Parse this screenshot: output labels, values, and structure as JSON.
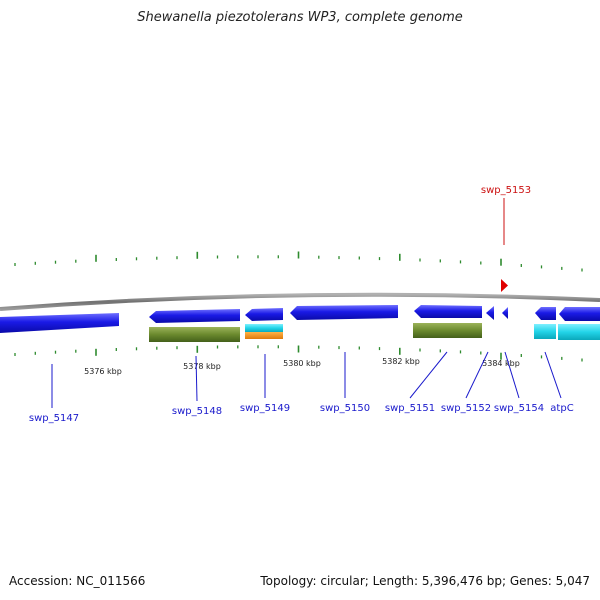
{
  "title": "Shewanella piezotolerans WP3, complete genome",
  "footer": {
    "accession": "Accession: NC_011566",
    "summary": "Topology: circular; Length: 5,396,476 bp; Genes: 5,047"
  },
  "colors": {
    "backbone": "#8c8c8c",
    "gene_blue": "#1a1ae0",
    "tick": "#2e8b2e",
    "highlight": "#cc1111",
    "green_feature": "#6b8a2e",
    "cyan_feature": "#22ccdd",
    "orange_feature": "#ee8811"
  },
  "scale_labels": [
    "5376 kbp",
    "5378 kbp",
    "5380 kbp",
    "5382 kbp",
    "5384 kbp"
  ],
  "genes": [
    {
      "name": "swp_5147",
      "color": "blue"
    },
    {
      "name": "swp_5148",
      "color": "blue"
    },
    {
      "name": "swp_5149",
      "color": "blue"
    },
    {
      "name": "swp_5150",
      "color": "blue"
    },
    {
      "name": "swp_5151",
      "color": "blue"
    },
    {
      "name": "swp_5152",
      "color": "blue"
    },
    {
      "name": "swp_5153",
      "color": "red"
    },
    {
      "name": "swp_5154",
      "color": "blue"
    },
    {
      "name": "atpC",
      "color": "blue"
    }
  ]
}
